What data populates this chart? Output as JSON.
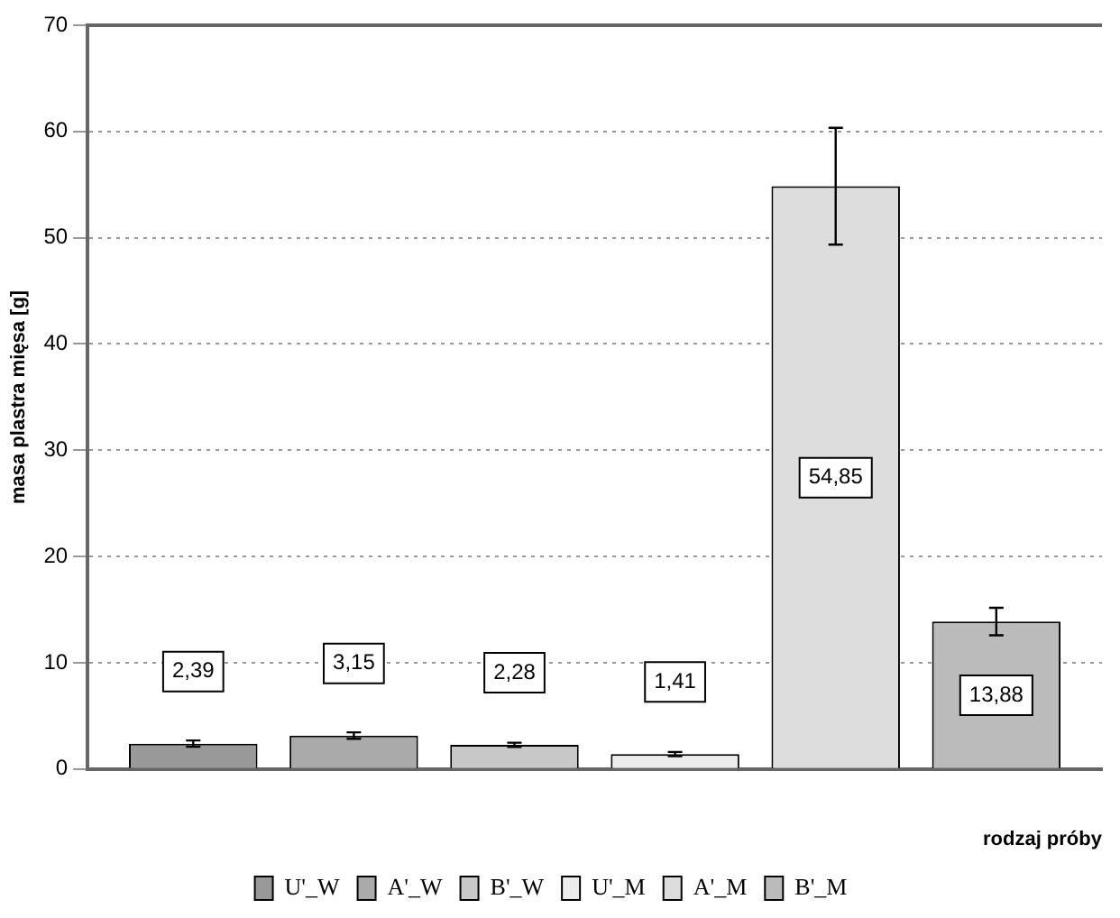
{
  "chart_data": {
    "type": "bar",
    "xlabel": "rodzaj próby",
    "ylabel": "masa plastra mięsa [g]",
    "categories": [
      null
    ],
    "series": [
      {
        "name": "U'_W",
        "color": "#999999",
        "values": [
          2.39
        ],
        "errors": [
          0.3
        ],
        "value_labels": [
          "2,39"
        ]
      },
      {
        "name": "A'_W",
        "color": "#aaaaaa",
        "values": [
          3.15
        ],
        "errors": [
          0.3
        ],
        "value_labels": [
          "3,15"
        ]
      },
      {
        "name": "B'_W",
        "color": "#c8c8c8",
        "values": [
          2.28
        ],
        "errors": [
          0.2
        ],
        "value_labels": [
          "2,28"
        ]
      },
      {
        "name": "U'_M",
        "color": "#ececec",
        "values": [
          1.41
        ],
        "errors": [
          0.2
        ],
        "value_labels": [
          "1,41"
        ]
      },
      {
        "name": "A'_M",
        "color": "#dddddd",
        "values": [
          54.85
        ],
        "errors": [
          5.5
        ],
        "value_labels": [
          "54,85"
        ]
      },
      {
        "name": "B'_M",
        "color": "#bbbbbb",
        "values": [
          13.88
        ],
        "errors": [
          1.3
        ],
        "value_labels": [
          "13,88"
        ]
      }
    ],
    "ylim": [
      0,
      70
    ],
    "yticks": [
      0,
      10,
      20,
      30,
      40,
      50,
      60,
      70
    ],
    "grid": "y",
    "legend": "bottom"
  }
}
